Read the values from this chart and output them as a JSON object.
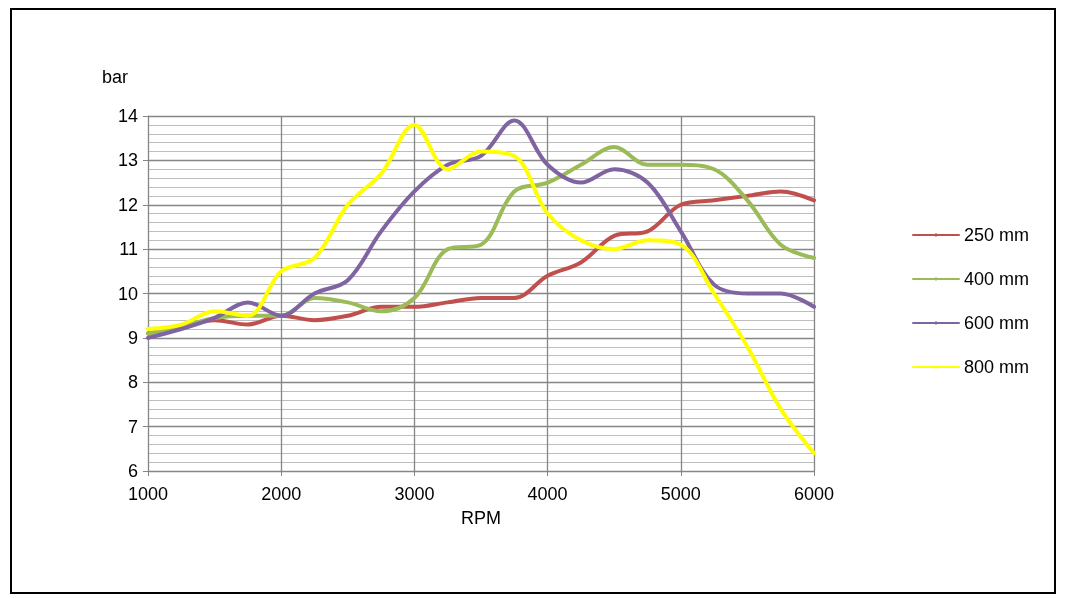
{
  "chart_data": {
    "type": "line",
    "xlabel": "RPM",
    "ylabel": "bar",
    "x": [
      1000,
      1250,
      1500,
      1750,
      2000,
      2250,
      2500,
      2750,
      3000,
      3250,
      3500,
      3750,
      4000,
      4250,
      4500,
      4750,
      5000,
      5250,
      5500,
      5750,
      6000
    ],
    "series": [
      {
        "name": "250 mm",
        "color": "#c0504d",
        "values": [
          9.1,
          9.25,
          9.4,
          9.3,
          9.5,
          9.4,
          9.5,
          9.7,
          9.7,
          9.8,
          9.9,
          9.9,
          10.4,
          10.7,
          11.3,
          11.4,
          12.0,
          12.1,
          12.2,
          12.3,
          12.1
        ]
      },
      {
        "name": "400 mm",
        "color": "#9bbb59",
        "values": [
          9.1,
          9.25,
          9.45,
          9.5,
          9.5,
          9.9,
          9.8,
          9.6,
          9.9,
          11.0,
          11.1,
          12.3,
          12.5,
          12.9,
          13.3,
          12.9,
          12.9,
          12.8,
          12.1,
          11.1,
          10.8
        ]
      },
      {
        "name": "600 mm",
        "color": "#8064a2",
        "values": [
          9.0,
          9.2,
          9.45,
          9.8,
          9.5,
          10.0,
          10.3,
          11.4,
          12.3,
          12.9,
          13.1,
          13.9,
          12.9,
          12.5,
          12.8,
          12.5,
          11.4,
          10.2,
          10.0,
          10.0,
          9.7
        ]
      },
      {
        "name": "800 mm",
        "color": "#ffff00",
        "values": [
          9.2,
          9.3,
          9.6,
          9.5,
          10.5,
          10.8,
          12.0,
          12.7,
          13.8,
          12.8,
          13.2,
          13.1,
          11.8,
          11.2,
          11.0,
          11.2,
          11.1,
          10.0,
          8.8,
          7.4,
          6.4
        ]
      }
    ],
    "xlim": [
      1000,
      6000
    ],
    "xticks": [
      1000,
      2000,
      3000,
      4000,
      5000,
      6000
    ],
    "ylim": [
      6,
      14
    ],
    "yticks": [
      6,
      7,
      8,
      9,
      10,
      11,
      12,
      13,
      14
    ],
    "grid": true,
    "legend": "right",
    "marker": "none",
    "line_style": "solid"
  }
}
